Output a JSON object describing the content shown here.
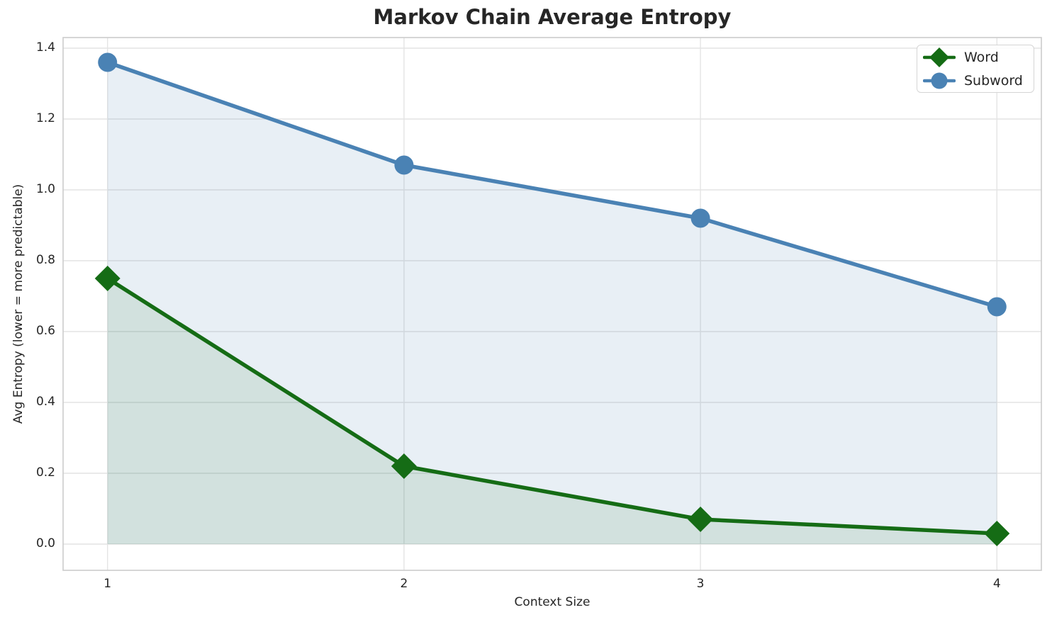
{
  "chart_data": {
    "type": "line",
    "title": "Markov Chain Average Entropy",
    "xlabel": "Context Size",
    "ylabel": "Avg Entropy (lower = more predictable)",
    "x": [
      1,
      2,
      3,
      4
    ],
    "series": [
      {
        "name": "Word",
        "values": [
          0.75,
          0.22,
          0.07,
          0.03
        ],
        "color": "#156c15",
        "marker": "diamond",
        "fill_to_zero": true,
        "fill_alpha": 0.1
      },
      {
        "name": "Subword",
        "values": [
          1.36,
          1.07,
          0.92,
          0.67
        ],
        "color": "#4a82b4",
        "marker": "circle",
        "fill_to_zero": true,
        "fill_alpha": 0.13
      }
    ],
    "xticks": [
      1,
      2,
      3,
      4
    ],
    "xtick_labels": [
      "1",
      "2",
      "3",
      "4"
    ],
    "yticks": [
      0.0,
      0.2,
      0.4,
      0.6,
      0.8,
      1.0,
      1.2,
      1.4
    ],
    "ytick_labels": [
      "0.0",
      "0.2",
      "0.4",
      "0.6",
      "0.8",
      "1.0",
      "1.2",
      "1.4"
    ],
    "xlim": [
      0.85,
      4.15
    ],
    "ylim": [
      -0.074,
      1.43
    ],
    "grid": true,
    "legend": {
      "position": "upper right",
      "entries": [
        "Word",
        "Subword"
      ]
    }
  },
  "colors": {
    "text": "#262626",
    "grid": "#e4e4e4",
    "spine": "#cccccc",
    "background": "#ffffff"
  }
}
